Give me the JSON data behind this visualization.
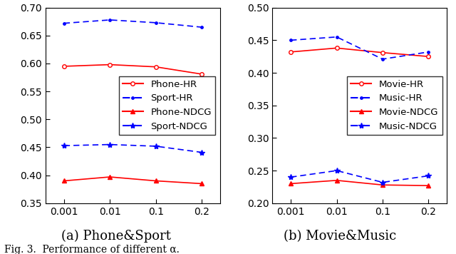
{
  "x_positions": [
    0,
    1,
    2,
    3
  ],
  "x_labels": [
    "0.001",
    "0.01",
    "0.1",
    "0.2"
  ],
  "left": {
    "phone_hr": [
      0.595,
      0.598,
      0.594,
      0.581
    ],
    "sport_hr": [
      0.672,
      0.678,
      0.673,
      0.665
    ],
    "phone_ndcg": [
      0.39,
      0.397,
      0.39,
      0.385
    ],
    "sport_ndcg": [
      0.453,
      0.455,
      0.452,
      0.441
    ],
    "ylim": [
      0.35,
      0.7
    ],
    "yticks": [
      0.35,
      0.4,
      0.45,
      0.5,
      0.55,
      0.6,
      0.65,
      0.7
    ],
    "legend": [
      "Phone-HR",
      "Sport-HR",
      "Phone-NDCG",
      "Sport-NDCG"
    ],
    "subtitle": "(a) Phone&Sport"
  },
  "right": {
    "movie_hr": [
      0.432,
      0.438,
      0.431,
      0.425
    ],
    "music_hr": [
      0.45,
      0.455,
      0.421,
      0.432
    ],
    "movie_ndcg": [
      0.23,
      0.235,
      0.228,
      0.227
    ],
    "music_ndcg": [
      0.24,
      0.25,
      0.232,
      0.242
    ],
    "ylim": [
      0.2,
      0.5
    ],
    "yticks": [
      0.2,
      0.25,
      0.3,
      0.35,
      0.4,
      0.45,
      0.5
    ],
    "legend": [
      "Movie-HR",
      "Music-HR",
      "Movie-NDCG",
      "Music-NDCG"
    ],
    "subtitle": "(b) Movie&Music"
  },
  "red_color": "#FF0000",
  "blue_color": "#0000FF",
  "fig_caption": "Fig. 3.  Performance of different α.",
  "subtitle_fontsize": 13,
  "caption_fontsize": 10,
  "tick_fontsize": 10,
  "legend_fontsize": 9.5
}
